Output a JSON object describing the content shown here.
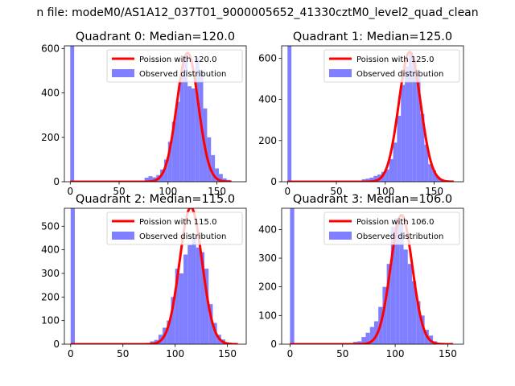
{
  "figure": {
    "suptitle": "n file: modeM0/AS1A12_037T01_9000005652_41330cztM0_level2_quad_clean"
  },
  "colors": {
    "hist": "#7f7fff",
    "fit": "#ff0000",
    "axes": "#000000",
    "background": "#ffffff"
  },
  "chart_data": [
    {
      "type": "bar",
      "title": "Quadrant 0: Median=120.0",
      "xlim": [
        -6,
        180
      ],
      "ylim": [
        0,
        612
      ],
      "xticks": [
        0,
        50,
        100,
        150
      ],
      "yticks": [
        0,
        200,
        400,
        600
      ],
      "legend": {
        "position": "top-right",
        "entries": [
          "Poission with 120.0",
          "Observed distribution"
        ]
      },
      "hist": {
        "name": "Observed distribution",
        "bin_width": 4,
        "x": [
          0,
          76,
          80,
          84,
          88,
          92,
          96,
          100,
          104,
          108,
          112,
          116,
          120,
          124,
          128,
          132,
          136,
          140,
          144,
          148,
          152,
          156,
          160
        ],
        "values": [
          612,
          18,
          25,
          20,
          30,
          55,
          100,
          180,
          270,
          360,
          480,
          560,
          430,
          420,
          560,
          500,
          330,
          200,
          120,
          60,
          35,
          15,
          8
        ]
      },
      "fit": {
        "name": "Poission with 120.0",
        "mu": 120.0,
        "peak": 580,
        "x_range": [
          0,
          165
        ]
      }
    },
    {
      "type": "bar",
      "title": "Quadrant 1: Median=125.0",
      "xlim": [
        -6,
        180
      ],
      "ylim": [
        0,
        660
      ],
      "xticks": [
        0,
        50,
        100,
        150
      ],
      "yticks": [
        0,
        200,
        400,
        600
      ],
      "legend": {
        "position": "top-right",
        "entries": [
          "Poission with 125.0",
          "Observed distribution"
        ]
      },
      "hist": {
        "name": "Observed distribution",
        "bin_width": 4,
        "x": [
          0,
          76,
          80,
          84,
          88,
          92,
          96,
          100,
          104,
          108,
          112,
          116,
          120,
          124,
          128,
          132,
          136,
          140,
          144,
          148,
          152,
          156,
          160
        ],
        "values": [
          660,
          12,
          15,
          20,
          28,
          35,
          48,
          60,
          110,
          190,
          320,
          470,
          560,
          630,
          590,
          520,
          330,
          180,
          85,
          55,
          25,
          10,
          5
        ]
      },
      "fit": {
        "name": "Poission with 125.0",
        "mu": 125.0,
        "peak": 630,
        "x_range": [
          0,
          170
        ]
      }
    },
    {
      "type": "bar",
      "title": "Quadrant 2: Median=115.0",
      "xlim": [
        -6,
        168
      ],
      "ylim": [
        0,
        576
      ],
      "xticks": [
        0,
        50,
        100,
        150
      ],
      "yticks": [
        0,
        100,
        200,
        300,
        400,
        500
      ],
      "legend": {
        "position": "top-right",
        "entries": [
          "Poission with 115.0",
          "Observed distribution"
        ]
      },
      "hist": {
        "name": "Observed distribution",
        "bin_width": 4,
        "x": [
          0,
          72,
          76,
          80,
          84,
          88,
          92,
          96,
          100,
          104,
          108,
          112,
          116,
          120,
          124,
          128,
          132,
          136,
          140,
          144,
          148
        ],
        "values": [
          576,
          5,
          12,
          18,
          40,
          70,
          100,
          200,
          320,
          300,
          380,
          420,
          460,
          410,
          390,
          320,
          170,
          90,
          40,
          20,
          8
        ]
      },
      "fit": {
        "name": "Poission with 115.0",
        "mu": 115.0,
        "peak": 580,
        "x_range": [
          0,
          160
        ]
      }
    },
    {
      "type": "bar",
      "title": "Quadrant 3: Median=106.0",
      "xlim": [
        -8,
        165
      ],
      "ylim": [
        0,
        474
      ],
      "xticks": [
        0,
        50,
        100,
        150
      ],
      "yticks": [
        0,
        100,
        200,
        300,
        400
      ],
      "legend": {
        "position": "top-right",
        "entries": [
          "Poission with 106.0",
          "Observed distribution"
        ]
      },
      "hist": {
        "name": "Observed distribution",
        "bin_width": 4,
        "x": [
          0,
          60,
          64,
          68,
          72,
          76,
          80,
          84,
          88,
          92,
          96,
          100,
          104,
          108,
          112,
          116,
          120,
          124,
          128,
          132,
          136
        ],
        "values": [
          474,
          8,
          10,
          25,
          40,
          60,
          80,
          130,
          200,
          280,
          410,
          440,
          420,
          330,
          280,
          220,
          150,
          100,
          50,
          30,
          10
        ]
      },
      "fit": {
        "name": "Poission with 106.0",
        "mu": 106.0,
        "peak": 450,
        "x_range": [
          0,
          155
        ]
      }
    }
  ]
}
